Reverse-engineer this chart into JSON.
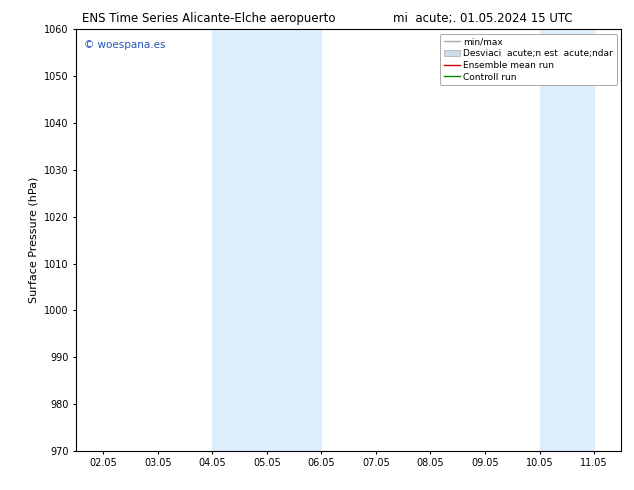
{
  "title_left": "ENS Time Series Alicante-Elche aeropuerto",
  "title_right": "mi  acute;. 01.05.2024 15 UTC",
  "ylabel": "Surface Pressure (hPa)",
  "ylim": [
    970,
    1060
  ],
  "yticks": [
    970,
    980,
    990,
    1000,
    1010,
    1020,
    1030,
    1040,
    1050,
    1060
  ],
  "xtick_labels": [
    "02.05",
    "03.05",
    "04.05",
    "05.05",
    "06.05",
    "07.05",
    "08.05",
    "09.05",
    "10.05",
    "11.05"
  ],
  "shaded_bands": [
    {
      "xmin": 2,
      "xmax": 4,
      "color": "#ddeeff"
    },
    {
      "xmin": 8,
      "xmax": 9,
      "color": "#ddeeff"
    }
  ],
  "watermark_text": "© woespana.es",
  "watermark_color": "#2255bb",
  "background_color": "#ffffff",
  "fig_width": 6.34,
  "fig_height": 4.9,
  "dpi": 100,
  "legend_minmax_color": "#aaaaaa",
  "legend_fill_color": "#ccdcee",
  "legend_mean_color": "#cc0000",
  "legend_ctrl_color": "#008800",
  "legend_label_minmax": "min/max",
  "legend_label_std": "Desviaci  acute;n est  acute;ndar",
  "legend_label_mean": "Ensemble mean run",
  "legend_label_ctrl": "Controll run"
}
